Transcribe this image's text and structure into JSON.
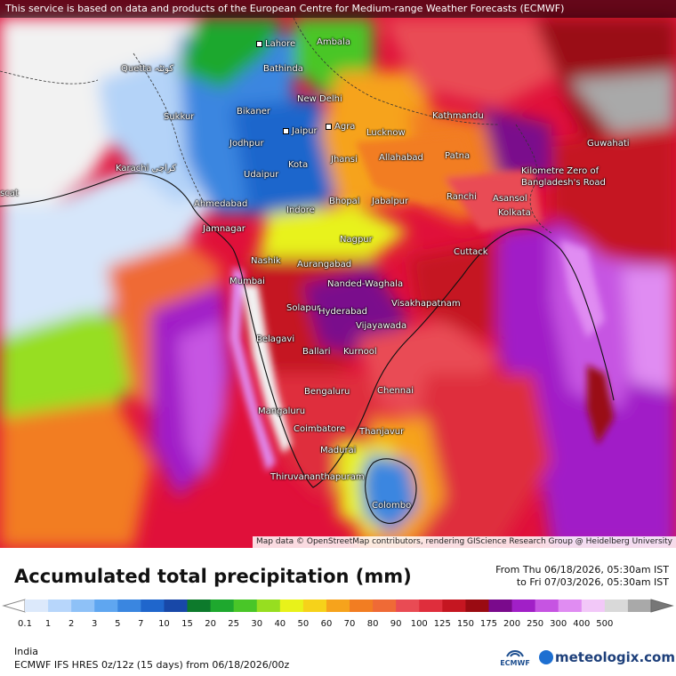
{
  "notice": "This service is based on data and products of the European Centre for Medium-range Weather Forecasts (ECMWF)",
  "attribution": "Map data © OpenStreetMap contributors, rendering GIScience Research Group @ Heidelberg University",
  "cities": {
    "lahore": "Lahore",
    "quetta": "Quetta کوئٹہ",
    "bathinda": "Bathinda",
    "ambala": "Ambala",
    "new_delhi": "New Delhi",
    "bikaner": "Bikaner",
    "sukkur": "Sukkur",
    "jaipur": "Jaipur",
    "agra": "Agra",
    "lucknow": "Lucknow",
    "kathmandu": "Kathmandu",
    "jodhpur": "Jodhpur",
    "guwahati": "Guwahati",
    "karachi": "Karachi کراچی",
    "kota": "Kota",
    "jhansi": "Jhansi",
    "allahabad": "Allahabad",
    "patna": "Patna",
    "kilometre_zero": "Kilometre Zero of Bangladesh's Road",
    "udaipur": "Udaipur",
    "ranchi": "Ranchi",
    "asansol": "Asansol",
    "ahmedabad": "Ahmedabad",
    "indore": "Indore",
    "bhopal": "Bhopal",
    "jabalpur": "Jabalpur",
    "kolkata": "Kolkata",
    "jamnagar": "Jamnagar",
    "nagpur": "Nagpur",
    "nashik": "Nashik",
    "aurangabad": "Aurangabad",
    "cuttack": "Cuttack",
    "mumbai": "Mumbai",
    "nanded": "Nanded-Waghala",
    "solapur": "Solapur",
    "hyderabad": "Hyderabad",
    "visakhapatnam": "Visakhapatnam",
    "vijayawada": "Vijayawada",
    "belagavi": "Belagavi",
    "ballari": "Ballari",
    "kurnool": "Kurnool",
    "bengaluru": "Bengaluru",
    "chennai": "Chennai",
    "mangaluru": "Mangaluru",
    "coimbatore": "Coimbatore",
    "thanjavur": "Thanjavur",
    "madurai": "Madurai",
    "thiruvananthapuram": "Thiruvananthapuram",
    "colombo": "Colombo",
    "muscat": "scat"
  },
  "legend": {
    "title": "Accumulated total precipitation (mm)",
    "from": "From Thu 06/18/2026, 05:30am IST",
    "to": "to Fri 07/03/2026, 05:30am IST",
    "levels": [
      "0.1",
      "1",
      "2",
      "3",
      "5",
      "7",
      "10",
      "15",
      "20",
      "25",
      "30",
      "40",
      "50",
      "60",
      "70",
      "80",
      "90",
      "100",
      "125",
      "150",
      "175",
      "200",
      "250",
      "300",
      "400",
      "500"
    ],
    "colors": [
      "#dce9fb",
      "#b7d6fb",
      "#8ec1f7",
      "#5fa6f0",
      "#3a86e0",
      "#1f66cc",
      "#1848a8",
      "#0d7a2c",
      "#1ea82e",
      "#49c628",
      "#97de20",
      "#e8f21a",
      "#f6d21a",
      "#f6a31c",
      "#f27d22",
      "#ef6a36",
      "#e94b54",
      "#df2e3c",
      "#c51621",
      "#9a0b12",
      "#7a0a8c",
      "#a11fc7",
      "#c654e2",
      "#e08cf2",
      "#f2c8f8",
      "#d9d9d9",
      "#a9a9a9"
    ],
    "region": "India",
    "model": "ECMWF IFS HRES 0z/12z (15 days) from 06/18/2026/00z"
  },
  "branding": {
    "ecmwf_label": "ECMWF",
    "meteologix": "meteologix.com"
  }
}
